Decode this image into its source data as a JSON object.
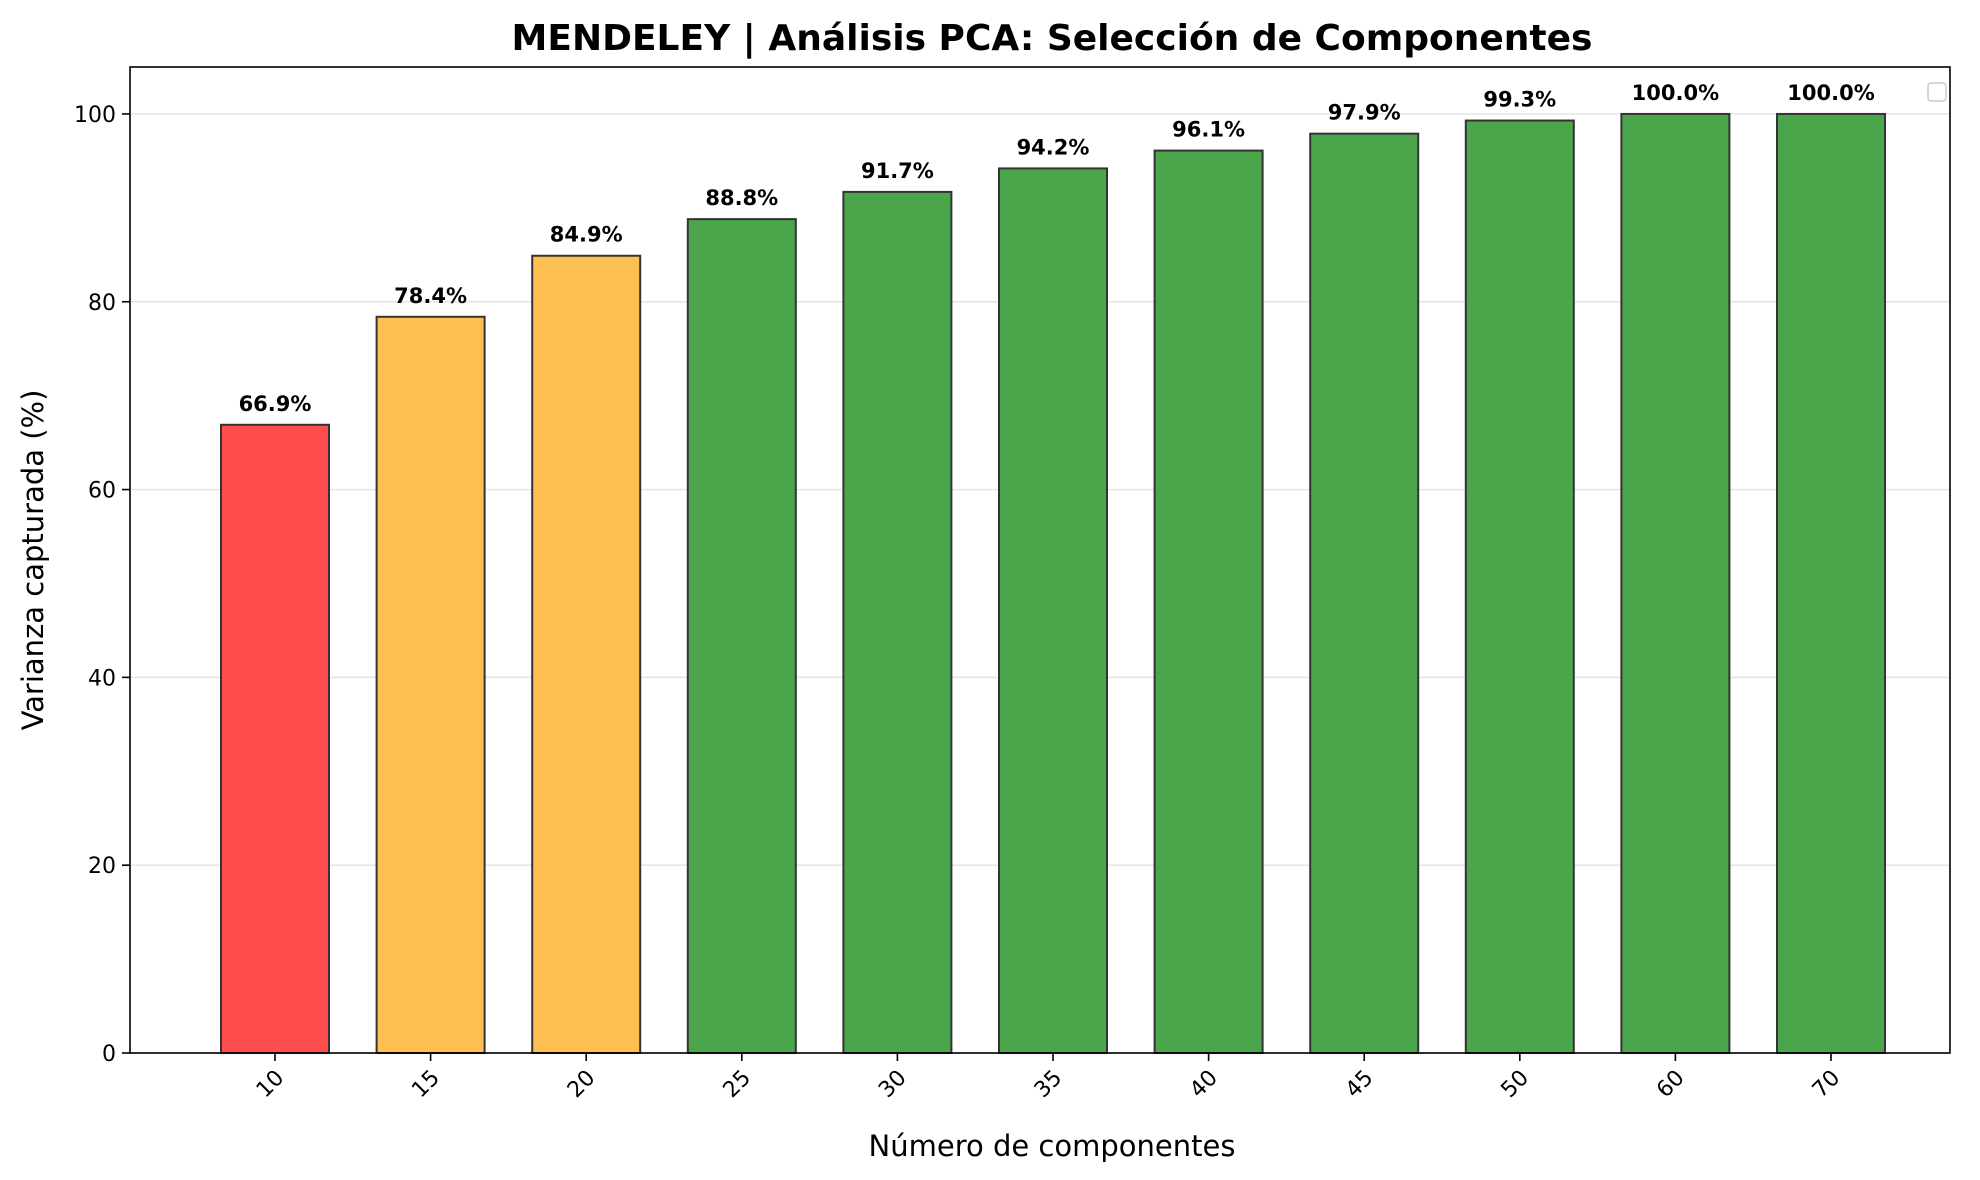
{
  "chart_data": {
    "type": "bar",
    "title": "MENDELEY | Análisis PCA: Selección de Componentes",
    "xlabel": "Número de componentes",
    "ylabel": "Varianza capturada (%)",
    "categories": [
      "10",
      "15",
      "20",
      "25",
      "30",
      "35",
      "40",
      "45",
      "50",
      "60",
      "70"
    ],
    "values": [
      66.9,
      78.4,
      84.9,
      88.8,
      91.7,
      94.2,
      96.1,
      97.9,
      99.3,
      100.0,
      100.0
    ],
    "value_labels": [
      "66.9%",
      "78.4%",
      "84.9%",
      "88.8%",
      "91.7%",
      "94.2%",
      "96.1%",
      "97.9%",
      "99.3%",
      "100.0%",
      "100.0%"
    ],
    "bar_colors": [
      "#ff4d4d",
      "#fdbf4f",
      "#fdbf4f",
      "#4ba64b",
      "#4ba64b",
      "#4ba64b",
      "#4ba64b",
      "#4ba64b",
      "#4ba64b",
      "#4ba64b",
      "#4ba64b"
    ],
    "edge_color": "#333333",
    "ylim": [
      0,
      105
    ],
    "yticks": [
      0,
      20,
      40,
      60,
      80,
      100
    ],
    "grid": "y",
    "legend": "top-right (empty)"
  }
}
